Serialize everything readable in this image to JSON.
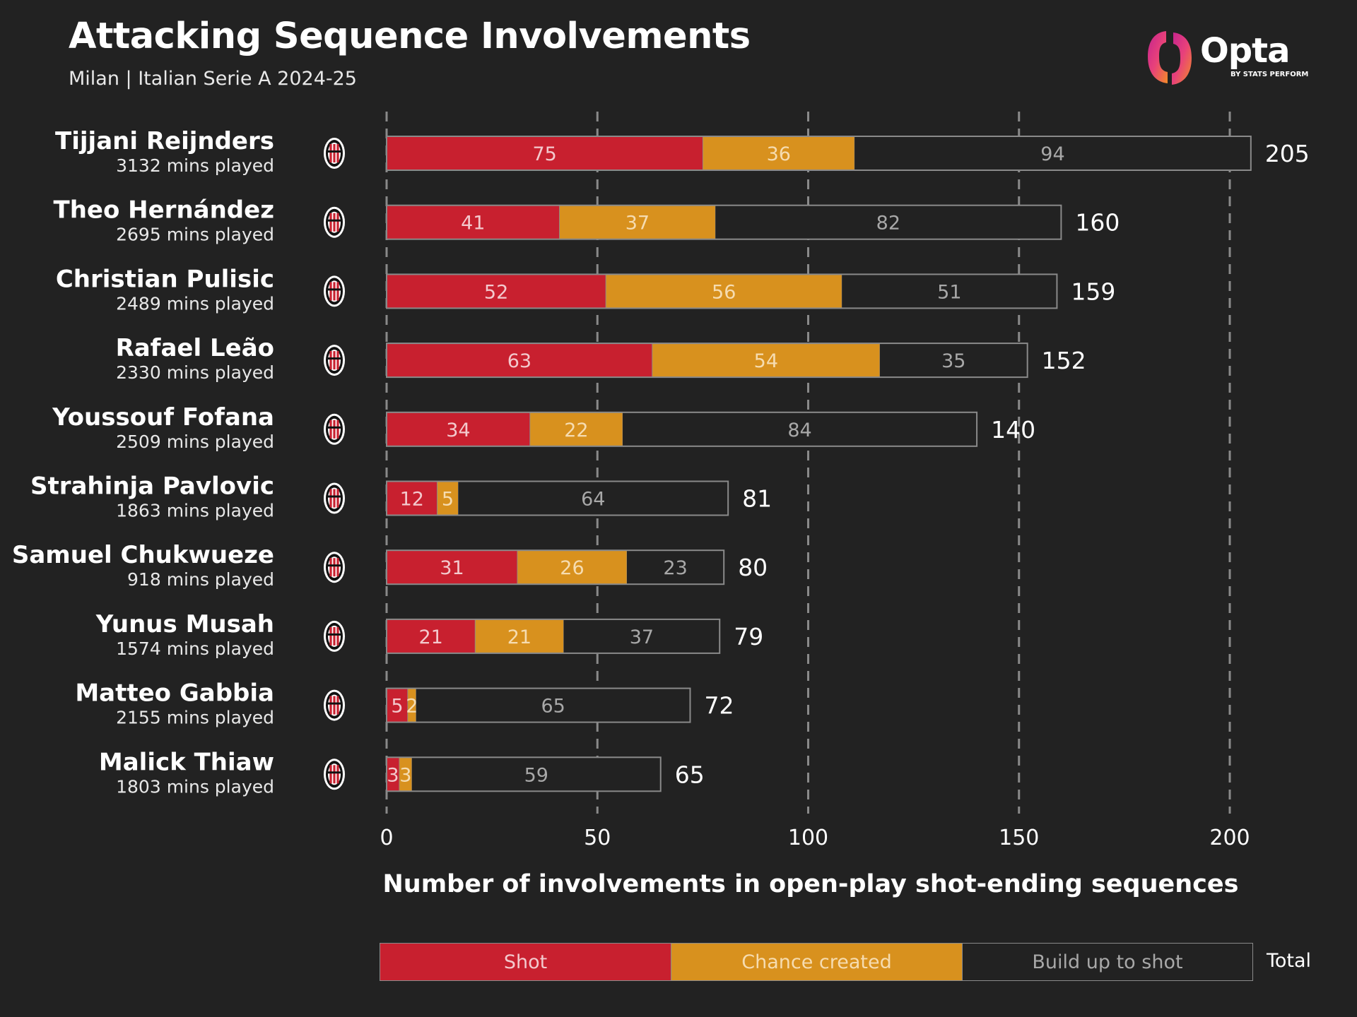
{
  "header": {
    "title": "Attacking Sequence Involvements",
    "subtitle": "Milan | Italian Serie A 2024-25"
  },
  "brand": {
    "logo_icon": "opta-logo-icon",
    "wordmark": "Opta",
    "byline": "BY STATS PERFORM"
  },
  "colors": {
    "background": "#222222",
    "shot": "#c8202f",
    "chance_created": "#d8911e",
    "build_up": "#222222",
    "build_up_text": "#a8a8a8",
    "border": "#8a8a8a",
    "grid": "#8a8a8a"
  },
  "team_icon": "milan-crest-icon",
  "chart_data": {
    "type": "bar",
    "orientation": "horizontal",
    "stacked": true,
    "xlabel": "Number of involvements in open-play shot-ending sequences",
    "xlim": [
      0,
      200
    ],
    "xticks": [
      0,
      50,
      100,
      150,
      200
    ],
    "grid": "vertical-dashed",
    "legend_position": "bottom",
    "categories": [
      {
        "name": "Tijjani Reijnders",
        "mins": "3132 mins played"
      },
      {
        "name": "Theo Hernández",
        "mins": "2695 mins played"
      },
      {
        "name": "Christian Pulisic",
        "mins": "2489 mins played"
      },
      {
        "name": "Rafael Leão",
        "mins": "2330 mins played"
      },
      {
        "name": "Youssouf Fofana",
        "mins": "2509 mins played"
      },
      {
        "name": "Strahinja Pavlovic",
        "mins": "1863 mins played"
      },
      {
        "name": "Samuel Chukwueze",
        "mins": "918 mins played"
      },
      {
        "name": "Yunus Musah",
        "mins": "1574 mins played"
      },
      {
        "name": "Matteo Gabbia",
        "mins": "2155 mins played"
      },
      {
        "name": "Malick Thiaw",
        "mins": "1803 mins played"
      }
    ],
    "series": [
      {
        "name": "Shot",
        "values": [
          75,
          41,
          52,
          63,
          34,
          12,
          31,
          21,
          5,
          3
        ]
      },
      {
        "name": "Chance created",
        "values": [
          36,
          37,
          56,
          54,
          22,
          5,
          26,
          21,
          2,
          3
        ]
      },
      {
        "name": "Build up to shot",
        "values": [
          94,
          82,
          51,
          35,
          84,
          64,
          23,
          37,
          65,
          59
        ]
      }
    ],
    "totals": [
      205,
      160,
      159,
      152,
      140,
      81,
      80,
      79,
      72,
      65
    ],
    "total_label": "Total"
  }
}
